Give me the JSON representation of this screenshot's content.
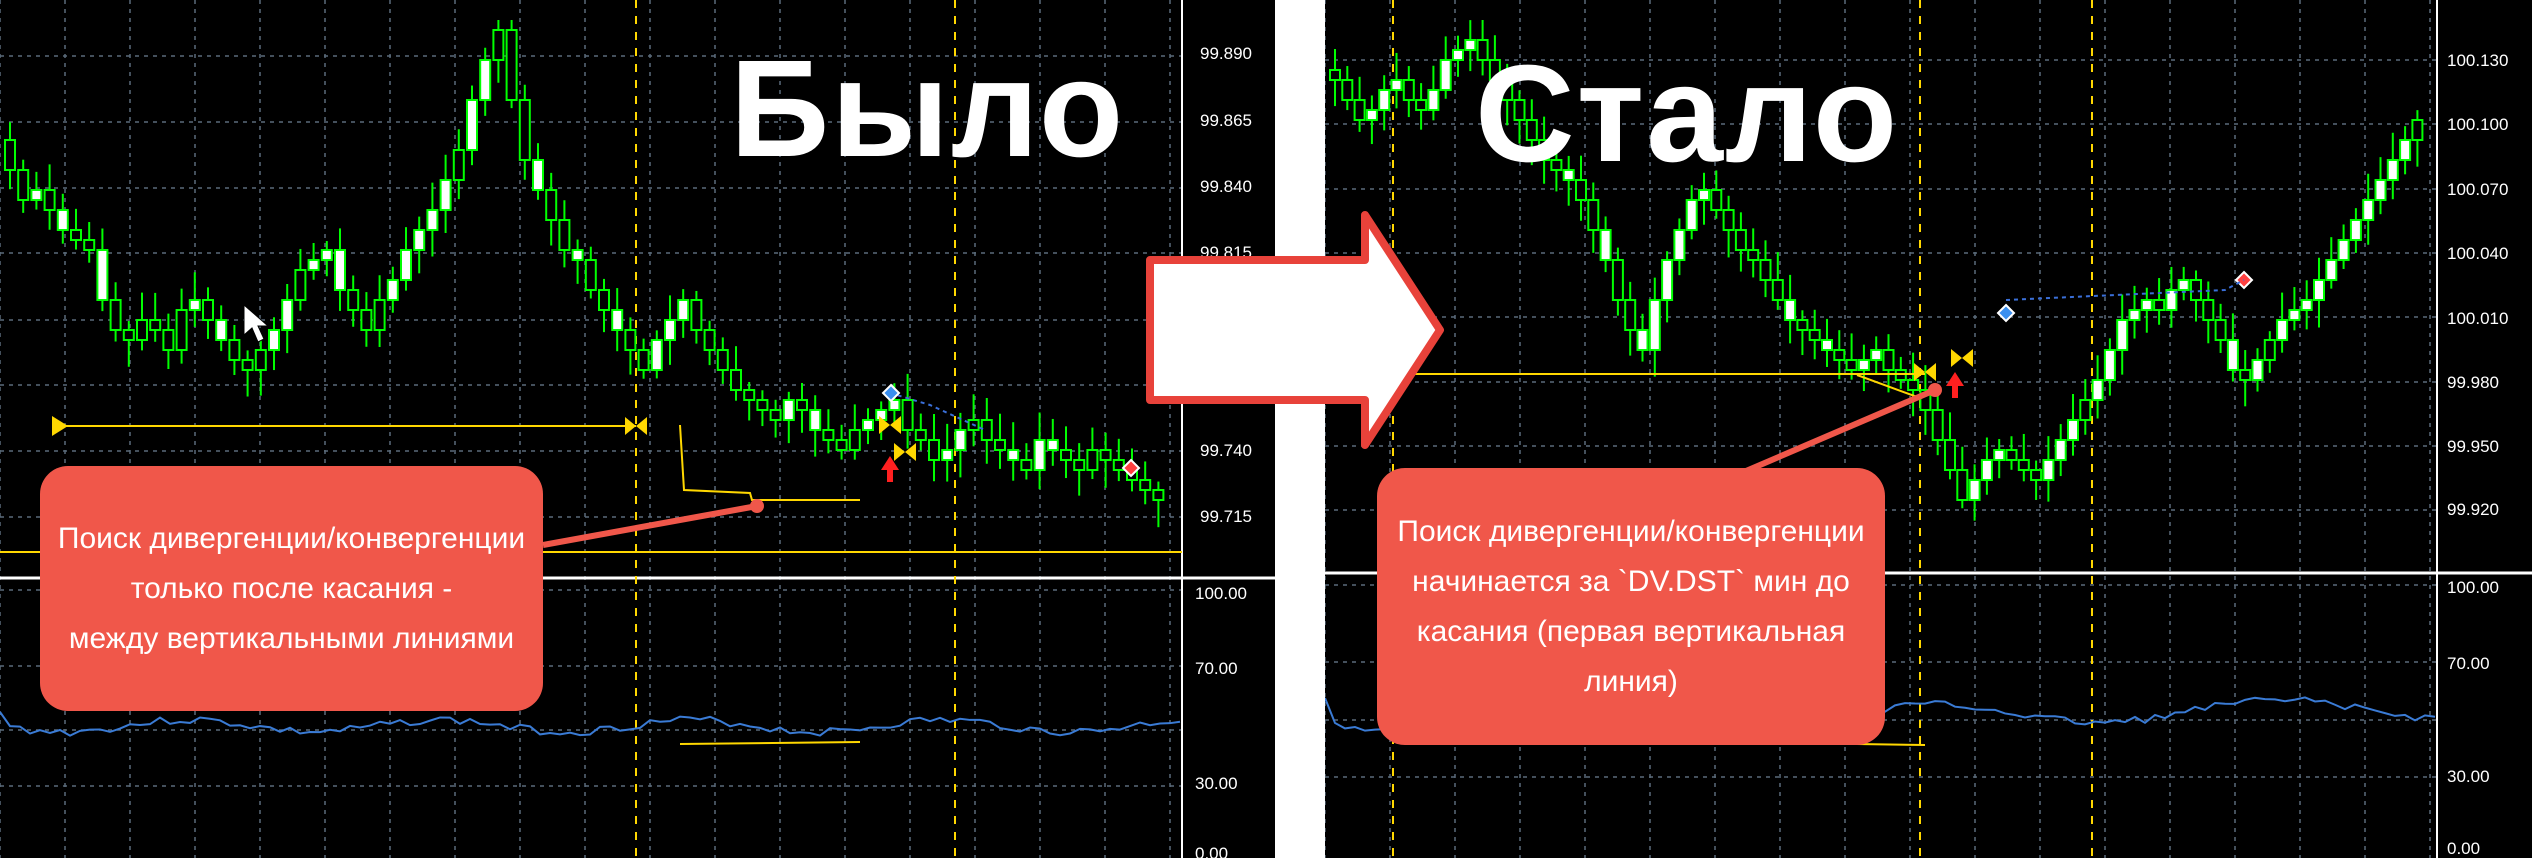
{
  "before": {
    "title": "Было",
    "price_axis": [
      "99.890",
      "99.865",
      "99.840",
      "99.815",
      "99.740",
      "99.715"
    ],
    "indicator_axis": [
      "100.00",
      "70.00",
      "30.00",
      "0.00"
    ],
    "callout": {
      "line1": "Поиск дивергенции/конвергенции",
      "line2": "только после касания -",
      "line3": "между вертикальными линиями"
    }
  },
  "after": {
    "title": "Стало",
    "price_axis": [
      "100.130",
      "100.100",
      "100.070",
      "100.040",
      "100.010",
      "99.980",
      "99.950",
      "99.920"
    ],
    "indicator_axis": [
      "100.00",
      "70.00",
      "30.00",
      "0.00"
    ],
    "callout": {
      "line1": "Поиск дивергенции/конвергенции",
      "line2": "начинается за `DV.DST` мин до",
      "line3": "касания (первая вертикальная",
      "line4": "линия)"
    }
  },
  "colors": {
    "background": "#000000",
    "bull_candle": "#ffffff",
    "bear_candle": "#00ff00",
    "wick": "#00ff00",
    "grid": "#5a6b7a",
    "level_line": "#ffd700",
    "vertical_marker": "#ffd700",
    "indicator_line": "#3a7bd5",
    "callout": "#f0574a",
    "arrow_fill": "#ffffff",
    "arrow_border": "#e8423a"
  },
  "icons": {
    "transition": "right-arrow-icon",
    "touch_marker": "yellow-bowtie-icon",
    "signal_up": "red-up-arrow-icon",
    "mouse": "cursor-icon"
  }
}
